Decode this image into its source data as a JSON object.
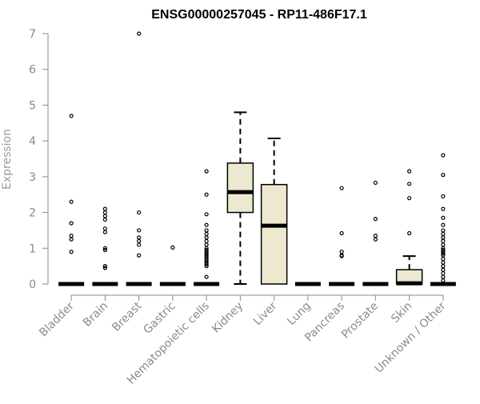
{
  "chart_data": {
    "type": "box",
    "title": "ENSG00000257045 - RP11-486F17.1",
    "xlabel": "",
    "ylabel": "Expression",
    "ylim": [
      0,
      7
    ],
    "yticks": [
      0,
      1,
      2,
      3,
      4,
      5,
      6,
      7
    ],
    "grid": false,
    "box_fill": "#efe8d0",
    "categories": [
      "Bladder",
      "Brain",
      "Breast",
      "Gastric",
      "Hematopoietic cells",
      "Kidney",
      "Liver",
      "Lung",
      "Pancreas",
      "Prostate",
      "Skin",
      "Unknown / Other"
    ],
    "boxes": [
      {
        "category": "Bladder",
        "whisker_low": 0,
        "q1": 0,
        "median": 0,
        "q3": 0,
        "whisker_high": 0,
        "outliers": [
          4.7,
          2.3,
          1.7,
          1.35,
          1.25,
          0.9
        ]
      },
      {
        "category": "Brain",
        "whisker_low": 0,
        "q1": 0,
        "median": 0,
        "q3": 0,
        "whisker_high": 0,
        "outliers": [
          2.1,
          2.0,
          1.9,
          1.8,
          1.55,
          1.45,
          1.0,
          0.95,
          0.5,
          0.45
        ]
      },
      {
        "category": "Breast",
        "whisker_low": 0,
        "q1": 0,
        "median": 0,
        "q3": 0,
        "whisker_high": 0,
        "outliers": [
          7.0,
          2.0,
          1.5,
          1.3,
          1.2,
          1.1,
          0.8
        ]
      },
      {
        "category": "Gastric",
        "whisker_low": 0,
        "q1": 0,
        "median": 0,
        "q3": 0,
        "whisker_high": 0,
        "outliers": [
          1.02
        ]
      },
      {
        "category": "Hematopoietic cells",
        "whisker_low": 0,
        "q1": 0,
        "median": 0,
        "q3": 0,
        "whisker_high": 0,
        "outliers": [
          3.15,
          2.5,
          1.95,
          1.65,
          1.5,
          1.4,
          1.3,
          1.2,
          1.1,
          1.0,
          0.95,
          0.9,
          0.85,
          0.8,
          0.75,
          0.7,
          0.65,
          0.6,
          0.55,
          0.5,
          0.2
        ]
      },
      {
        "category": "Kidney",
        "whisker_low": 0,
        "q1": 2.0,
        "median": 2.57,
        "q3": 3.38,
        "whisker_high": 4.8,
        "outliers": []
      },
      {
        "category": "Liver",
        "whisker_low": 0,
        "q1": 0,
        "median": 1.63,
        "q3": 2.78,
        "whisker_high": 4.07,
        "outliers": []
      },
      {
        "category": "Lung",
        "whisker_low": 0,
        "q1": 0,
        "median": 0,
        "q3": 0,
        "whisker_high": 0,
        "outliers": []
      },
      {
        "category": "Pancreas",
        "whisker_low": 0,
        "q1": 0,
        "median": 0,
        "q3": 0,
        "whisker_high": 0,
        "outliers": [
          2.68,
          1.42,
          0.9,
          0.8,
          0.78
        ]
      },
      {
        "category": "Prostate",
        "whisker_low": 0,
        "q1": 0,
        "median": 0,
        "q3": 0,
        "whisker_high": 0,
        "outliers": [
          2.83,
          1.82,
          1.35,
          1.25
        ]
      },
      {
        "category": "Skin",
        "whisker_low": 0,
        "q1": 0,
        "median": 0.02,
        "q3": 0.4,
        "whisker_high": 0.78,
        "outliers": [
          3.15,
          2.8,
          2.4,
          1.42
        ]
      },
      {
        "category": "Unknown / Other",
        "whisker_low": 0,
        "q1": 0,
        "median": 0,
        "q3": 0,
        "whisker_high": 0,
        "outliers": [
          3.6,
          3.05,
          2.45,
          2.1,
          1.85,
          1.65,
          1.5,
          1.4,
          1.3,
          1.2,
          1.1,
          1.0,
          0.95,
          0.9,
          0.85,
          0.8,
          0.7,
          0.6,
          0.5,
          0.4,
          0.3,
          0.2,
          0.1
        ]
      }
    ]
  }
}
